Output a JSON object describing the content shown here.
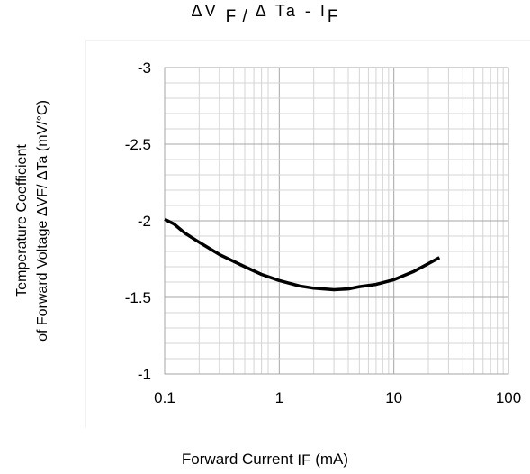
{
  "chart_data": {
    "type": "line",
    "title": {
      "main": "ΔV",
      "sub1": "F /",
      "mid": "Δ  Ta - I",
      "sub2": "F"
    },
    "xlabel": {
      "main": "Forward Current   ",
      "sub": "IF",
      "unit": " (mA)"
    },
    "ylabel": {
      "line1": "Temperature Coefficient",
      "line2": "of Forward Voltage   ΔVF/ ΔTa (mV/°C)"
    },
    "x_scale": "log",
    "xlim": [
      0.1,
      100
    ],
    "ylim": [
      -3,
      -1
    ],
    "y_axis_inverted": true,
    "grid": true,
    "x_ticks": [
      {
        "value": 0.1,
        "label": "0.1"
      },
      {
        "value": 1,
        "label": "1"
      },
      {
        "value": 10,
        "label": "10"
      },
      {
        "value": 100,
        "label": "100"
      }
    ],
    "y_ticks": [
      {
        "value": -3,
        "label": "-3"
      },
      {
        "value": -2.5,
        "label": "-2.5"
      },
      {
        "value": -2,
        "label": "-2"
      },
      {
        "value": -1.5,
        "label": "-1.5"
      },
      {
        "value": -1,
        "label": "-1"
      }
    ],
    "series": [
      {
        "color": "#000000",
        "x": [
          0.1,
          0.12,
          0.15,
          0.2,
          0.3,
          0.5,
          0.7,
          1,
          1.5,
          2,
          3,
          4,
          5,
          7,
          10,
          15,
          20,
          25
        ],
        "y": [
          -2.01,
          -1.98,
          -1.92,
          -1.86,
          -1.78,
          -1.7,
          -1.65,
          -1.61,
          -1.575,
          -1.56,
          -1.55,
          -1.555,
          -1.57,
          -1.585,
          -1.615,
          -1.67,
          -1.72,
          -1.76
        ]
      }
    ]
  }
}
